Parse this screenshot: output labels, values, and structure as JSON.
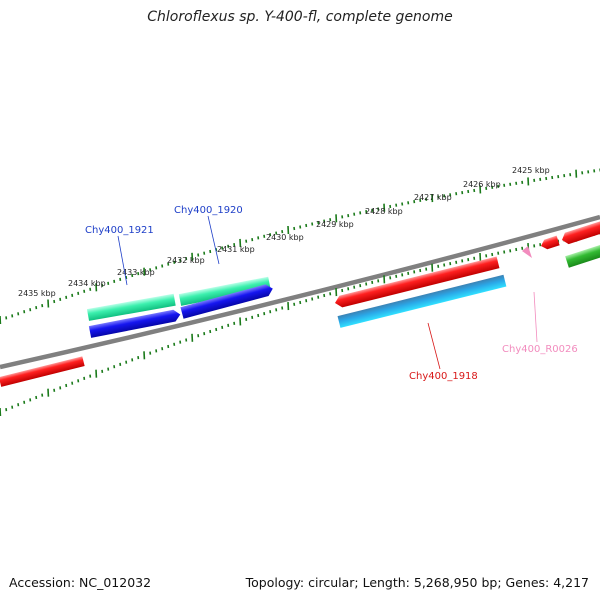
{
  "title": "Chloroflexus sp. Y-400-fl, complete genome",
  "footer": {
    "accession": "Accession: NC_012032",
    "topology": "Topology: circular; Length: 5,268,950 bp; Genes: 4,217"
  },
  "scale": {
    "unit": "kbp",
    "labels": [
      "2425 kbp",
      "2426 kbp",
      "2427 kbp",
      "2428 kbp",
      "2429 kbp",
      "2430 kbp",
      "2431 kbp",
      "2432 kbp",
      "2433 kbp",
      "2434 kbp",
      "2435 kbp"
    ]
  },
  "genes": [
    {
      "id": "Chy400_1921",
      "color": "#1e3fc8"
    },
    {
      "id": "Chy400_1920",
      "color": "#1e3fc8"
    },
    {
      "id": "Chy400_1918",
      "color": "#d81818"
    },
    {
      "id": "Chy400_R0026",
      "color": "#f28cbe"
    }
  ],
  "colors": {
    "backbone": "#808080",
    "ticks": "#1a7a1a",
    "forward_cds": "#ff1e1e",
    "forward_teal": "#2ff0a8",
    "reverse_blue": "#1010ee",
    "reverse_cyan": "#20c8f0",
    "rna_green": "#33bb33"
  }
}
